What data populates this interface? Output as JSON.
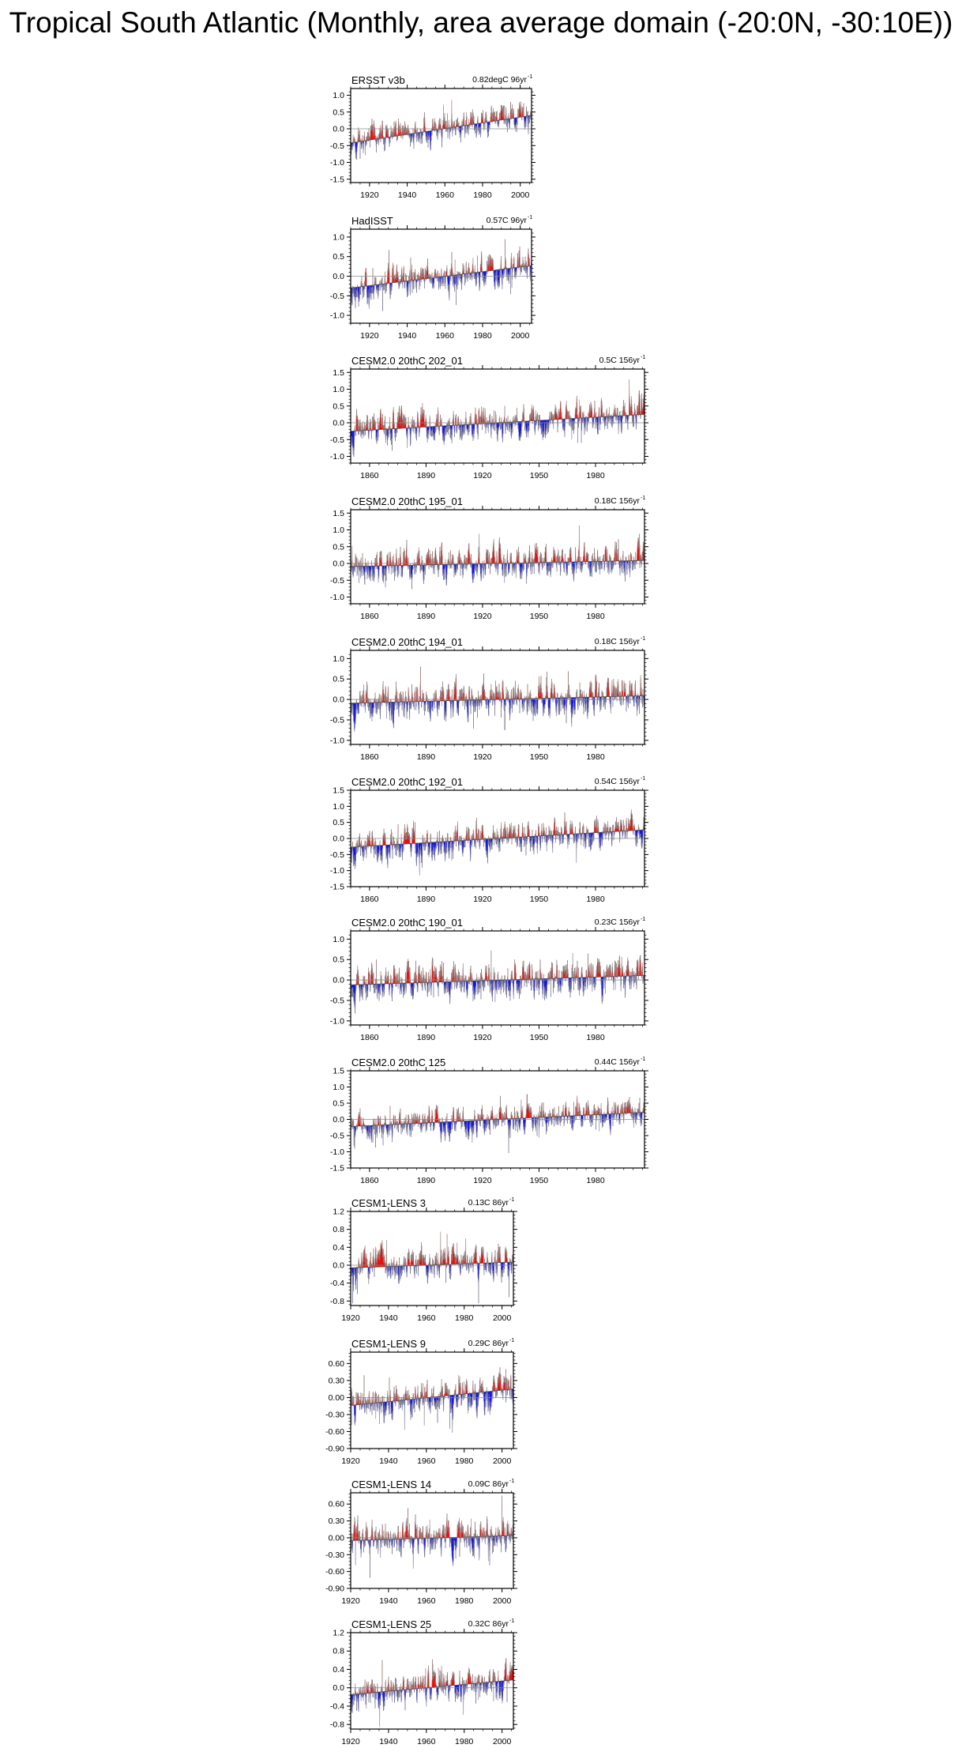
{
  "title": "Tropical South Atlantic (Monthly, area average domain (-20:0N, -30:10E))",
  "colors": {
    "positive": "#e8100c",
    "negative": "#1515e6",
    "frame": "#000000",
    "trend": "#8c8c8c"
  },
  "chart_data": [
    {
      "type": "bar",
      "name": "ERSST v3b",
      "trend_label": "0.82degC 96yr",
      "trend_sup": "-1",
      "x_range": [
        1910,
        2006
      ],
      "ylim": [
        -1.6,
        1.2
      ],
      "yticks": [
        "1.0",
        "0.5",
        "0.0",
        "-0.5",
        "-1.0",
        "-1.5"
      ],
      "ytick_values": [
        1.0,
        0.5,
        0.0,
        -0.5,
        -1.0,
        -1.5
      ],
      "xticks": [
        "1920",
        "1940",
        "1960",
        "1980",
        "2000"
      ],
      "xtick_values": [
        1920,
        1940,
        1960,
        1980,
        2000
      ],
      "trend": [
        -0.42,
        0.4
      ],
      "amp": [
        0.5,
        0.5
      ],
      "seed": 11
    },
    {
      "type": "bar",
      "name": "HadISST",
      "trend_label": "0.57C 96yr",
      "trend_sup": "-1",
      "x_range": [
        1910,
        2006
      ],
      "ylim": [
        -1.2,
        1.2
      ],
      "yticks": [
        "1.0",
        "0.5",
        "0.0",
        "-0.5",
        "-1.0"
      ],
      "ytick_values": [
        1.0,
        0.5,
        0.0,
        -0.5,
        -1.0
      ],
      "xticks": [
        "1920",
        "1940",
        "1960",
        "1980",
        "2000"
      ],
      "xtick_values": [
        1920,
        1940,
        1960,
        1980,
        2000
      ],
      "trend": [
        -0.3,
        0.27
      ],
      "amp": [
        0.45,
        0.45
      ],
      "seed": 23
    },
    {
      "type": "bar",
      "name": "CESM2.0 20thC 202_01",
      "trend_label": "0.5C 156yr",
      "trend_sup": "-1",
      "x_range": [
        1850,
        2006
      ],
      "ylim": [
        -1.2,
        1.6
      ],
      "yticks": [
        "1.5",
        "1.0",
        "0.5",
        "0.0",
        "-0.5",
        "-1.0"
      ],
      "ytick_values": [
        1.5,
        1.0,
        0.5,
        0.0,
        -0.5,
        -1.0
      ],
      "xticks": [
        "1860",
        "1890",
        "1920",
        "1950",
        "1980"
      ],
      "xtick_values": [
        1860,
        1890,
        1920,
        1950,
        1980
      ],
      "trend": [
        -0.25,
        0.25
      ],
      "amp": [
        0.55,
        0.55
      ],
      "seed": 37
    },
    {
      "type": "bar",
      "name": "CESM2.0 20thC 195_01",
      "trend_label": "0.18C 156yr",
      "trend_sup": "-1",
      "x_range": [
        1850,
        2006
      ],
      "ylim": [
        -1.2,
        1.6
      ],
      "yticks": [
        "1.5",
        "1.0",
        "0.5",
        "0.0",
        "-0.5",
        "-1.0"
      ],
      "ytick_values": [
        1.5,
        1.0,
        0.5,
        0.0,
        -0.5,
        -1.0
      ],
      "xticks": [
        "1860",
        "1890",
        "1920",
        "1950",
        "1980"
      ],
      "xtick_values": [
        1860,
        1890,
        1920,
        1950,
        1980
      ],
      "trend": [
        -0.09,
        0.09
      ],
      "amp": [
        0.55,
        0.55
      ],
      "seed": 41
    },
    {
      "type": "bar",
      "name": "CESM2.0 20thC 194_01",
      "trend_label": "0.18C 156yr",
      "trend_sup": "-1",
      "x_range": [
        1850,
        2006
      ],
      "ylim": [
        -1.1,
        1.2
      ],
      "yticks": [
        "1.0",
        "0.5",
        "0.0",
        "-0.5",
        "-1.0"
      ],
      "ytick_values": [
        1.0,
        0.5,
        0.0,
        -0.5,
        -1.0
      ],
      "xticks": [
        "1860",
        "1890",
        "1920",
        "1950",
        "1980"
      ],
      "xtick_values": [
        1860,
        1890,
        1920,
        1950,
        1980
      ],
      "trend": [
        -0.09,
        0.09
      ],
      "amp": [
        0.5,
        0.5
      ],
      "seed": 53
    },
    {
      "type": "bar",
      "name": "CESM2.0 20thC 192_01",
      "trend_label": "0.54C 156yr",
      "trend_sup": "-1",
      "x_range": [
        1850,
        2006
      ],
      "ylim": [
        -1.5,
        1.5
      ],
      "yticks": [
        "1.5",
        "1.0",
        "0.5",
        "0.0",
        "-0.5",
        "-1.0",
        "-1.5"
      ],
      "ytick_values": [
        1.5,
        1.0,
        0.5,
        0.0,
        -0.5,
        -1.0,
        -1.5
      ],
      "xticks": [
        "1860",
        "1890",
        "1920",
        "1950",
        "1980"
      ],
      "xtick_values": [
        1860,
        1890,
        1920,
        1950,
        1980
      ],
      "trend": [
        -0.27,
        0.27
      ],
      "amp": [
        0.55,
        0.55
      ],
      "seed": 67
    },
    {
      "type": "bar",
      "name": "CESM2.0 20thC 190_01",
      "trend_label": "0.23C 156yr",
      "trend_sup": "-1",
      "x_range": [
        1850,
        2006
      ],
      "ylim": [
        -1.1,
        1.2
      ],
      "yticks": [
        "1.0",
        "0.5",
        "0.0",
        "-0.5",
        "-1.0"
      ],
      "ytick_values": [
        1.0,
        0.5,
        0.0,
        -0.5,
        -1.0
      ],
      "xticks": [
        "1860",
        "1890",
        "1920",
        "1950",
        "1980"
      ],
      "xtick_values": [
        1860,
        1890,
        1920,
        1950,
        1980
      ],
      "trend": [
        -0.12,
        0.11
      ],
      "amp": [
        0.5,
        0.5
      ],
      "seed": 79
    },
    {
      "type": "bar",
      "name": "CESM2.0 20thC 125",
      "trend_label": "0.44C 156yr",
      "trend_sup": "-1",
      "x_range": [
        1850,
        2006
      ],
      "ylim": [
        -1.5,
        1.5
      ],
      "yticks": [
        "1.5",
        "1.0",
        "0.5",
        "0.0",
        "-0.5",
        "-1.0",
        "-1.5"
      ],
      "ytick_values": [
        1.5,
        1.0,
        0.5,
        0.0,
        -0.5,
        -1.0,
        -1.5
      ],
      "xticks": [
        "1860",
        "1890",
        "1920",
        "1950",
        "1980"
      ],
      "xtick_values": [
        1860,
        1890,
        1920,
        1950,
        1980
      ],
      "trend": [
        -0.22,
        0.22
      ],
      "amp": [
        0.5,
        0.5
      ],
      "seed": 83
    },
    {
      "type": "bar",
      "name": "CESM1-LENS 3",
      "trend_label": "0.13C 86yr",
      "trend_sup": "-1",
      "x_range": [
        1920,
        2006
      ],
      "ylim": [
        -0.9,
        1.2
      ],
      "yticks": [
        "1.2",
        "0.8",
        "0.4",
        "0.0",
        "-0.4",
        "-0.8"
      ],
      "ytick_values": [
        1.2,
        0.8,
        0.4,
        0.0,
        -0.4,
        -0.8
      ],
      "xticks": [
        "1920",
        "1940",
        "1960",
        "1980",
        "2000"
      ],
      "xtick_values": [
        1920,
        1940,
        1960,
        1980,
        2000
      ],
      "trend": [
        -0.06,
        0.07
      ],
      "amp": [
        0.4,
        0.4
      ],
      "seed": 97
    },
    {
      "type": "bar",
      "name": "CESM1-LENS 9",
      "trend_label": "0.29C 86yr",
      "trend_sup": "-1",
      "x_range": [
        1920,
        2006
      ],
      "ylim": [
        -0.9,
        0.8
      ],
      "yticks": [
        "0.60",
        "0.30",
        "0.00",
        "-0.30",
        "-0.60",
        "-0.90"
      ],
      "ytick_values": [
        0.6,
        0.3,
        0.0,
        -0.3,
        -0.6,
        -0.9
      ],
      "xticks": [
        "1920",
        "1940",
        "1960",
        "1980",
        "2000"
      ],
      "xtick_values": [
        1920,
        1940,
        1960,
        1980,
        2000
      ],
      "trend": [
        -0.14,
        0.15
      ],
      "amp": [
        0.35,
        0.35
      ],
      "seed": 101
    },
    {
      "type": "bar",
      "name": "CESM1-LENS 14",
      "trend_label": "0.09C 86yr",
      "trend_sup": "-1",
      "x_range": [
        1920,
        2006
      ],
      "ylim": [
        -0.9,
        0.8
      ],
      "yticks": [
        "0.60",
        "0.30",
        "0.00",
        "-0.30",
        "-0.60",
        "-0.90"
      ],
      "ytick_values": [
        0.6,
        0.3,
        0.0,
        -0.3,
        -0.6,
        -0.9
      ],
      "xticks": [
        "1920",
        "1940",
        "1960",
        "1980",
        "2000"
      ],
      "xtick_values": [
        1920,
        1940,
        1960,
        1980,
        2000
      ],
      "trend": [
        -0.05,
        0.04
      ],
      "amp": [
        0.35,
        0.35
      ],
      "seed": 113
    },
    {
      "type": "bar",
      "name": "CESM1-LENS 25",
      "trend_label": "0.32C 86yr",
      "trend_sup": "-1",
      "x_range": [
        1920,
        2006
      ],
      "ylim": [
        -0.9,
        1.2
      ],
      "yticks": [
        "1.2",
        "0.8",
        "0.4",
        "0.0",
        "-0.4",
        "-0.8"
      ],
      "ytick_values": [
        1.2,
        0.8,
        0.4,
        0.0,
        -0.4,
        -0.8
      ],
      "xticks": [
        "1920",
        "1940",
        "1960",
        "1980",
        "2000"
      ],
      "xtick_values": [
        1920,
        1940,
        1960,
        1980,
        2000
      ],
      "trend": [
        -0.15,
        0.17
      ],
      "amp": [
        0.4,
        0.4
      ],
      "seed": 127
    }
  ]
}
